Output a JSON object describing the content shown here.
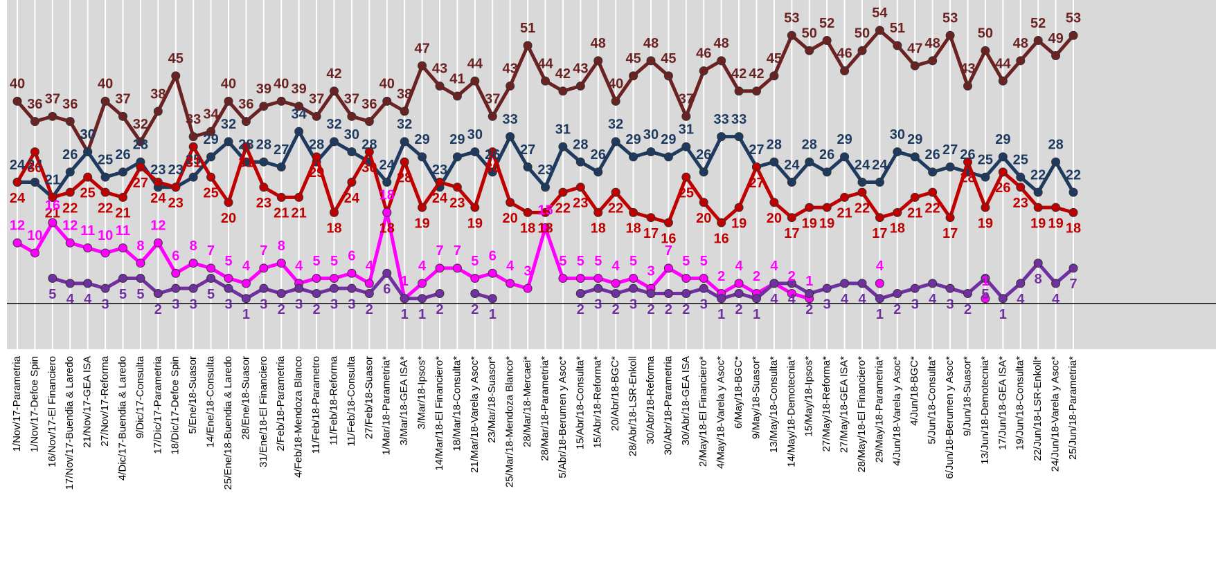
{
  "chart_data": {
    "type": "line",
    "categories": [
      "1/Nov/17-Parametria",
      "1/Nov/17-Defoe Spin",
      "16/Nov/17-El Financiero",
      "17/Nov/17-Buendia & Laredo",
      "21/Nov/17-GEA ISA",
      "27/Nov/17-Reforma",
      "4/Dic/17-Buendia & Laredo",
      "9/Dic/17-Consulta",
      "17/Dic/17-Parametria",
      "18/Dic/17-Defoe Spin",
      "5/Ene/18-Suasor",
      "14/Ene/18-Consulta",
      "25/Ene/18-Buendia & Laredo",
      "28/Ene/18-Suasor",
      "31/Ene/18-El Financiero",
      "2/Feb/18-Parametria",
      "4/Feb/18-Mendoza Blanco",
      "11/Feb/18-Parametro",
      "11/Feb/18-Reforma",
      "11/Feb/18-Consulta",
      "27/Feb/18-Suasor",
      "1/Mar/18-Parametria*",
      "3/Mar/18-GEA ISA*",
      "3/Mar/18-Ipsos*",
      "14/Mar/18-El Financiero*",
      "18/Mar/18-Consulta*",
      "21/Mar/18-Varela y Asoc*",
      "23/Mar/18-Suasor*",
      "25/Mar/18-Mendoza Blanco*",
      "28/Mar/18-Mercaei*",
      "28/Mar/18-Parametria*",
      "5/Abr/18-Berumen y Asoc*",
      "15/Abr/18-Consulta*",
      "15/Abr/18-Reforma*",
      "20/Abr/18-BGC*",
      "28/Abr/18-LSR-Enkoll",
      "30/Abr/18-Reforma",
      "30/Abr/18-Parametria",
      "30/Abr/18-GEA ISA",
      "2/May/18-El Financiero*",
      "4/May/18-Varela y Asoc*",
      "6/May/18-BGC*",
      "9/May/18-Suasor*",
      "13/May/18-Consulta*",
      "14/May/18-Demotecnia*",
      "15/May/18-Ipsos*",
      "27/May/18-Reforma*",
      "27/May/18-GEA ISA*",
      "28/May/18-El Financiero*",
      "29/May/18-Parametria*",
      "4/Jun/18-Varela y Asoc*",
      "4/Jun/18-BGC*",
      "5/Jun/18-Consulta*",
      "6/Jun/18-Berumen y Asoc*",
      "9/Jun/18-Suasor*",
      "13/Jun/18-Demotecnia*",
      "17/Jun/18-GEA ISA*",
      "19/Jun/18-Consulta*",
      "22/Jun/18-LSR-Enkoll*",
      "24/Jun/18-Varela y Asoc*",
      "25/Jun/18-Parametria*"
    ],
    "series": [
      {
        "color": "#6b2222",
        "label_side": "above",
        "values": [
          40,
          36,
          37,
          36,
          30,
          40,
          37,
          32,
          38,
          45,
          33,
          34,
          40,
          36,
          39,
          40,
          39,
          37,
          42,
          37,
          36,
          40,
          38,
          47,
          43,
          41,
          44,
          37,
          43,
          51,
          44,
          42,
          43,
          48,
          40,
          45,
          48,
          45,
          37,
          46,
          48,
          42,
          42,
          45,
          53,
          50,
          52,
          46,
          50,
          54,
          51,
          47,
          48,
          53,
          43,
          50,
          44,
          48,
          52,
          49,
          53
        ]
      },
      {
        "color": "#1f3a5f",
        "label_side": "above",
        "values": [
          24,
          24,
          21,
          26,
          30,
          25,
          26,
          28,
          23,
          23,
          25,
          29,
          32,
          28,
          28,
          27,
          34,
          28,
          32,
          30,
          28,
          24,
          32,
          29,
          23,
          29,
          30,
          26,
          33,
          27,
          23,
          31,
          28,
          26,
          32,
          29,
          30,
          29,
          31,
          26,
          33,
          33,
          27,
          28,
          24,
          28,
          26,
          29,
          24,
          24,
          30,
          29,
          26,
          27,
          26,
          25,
          29,
          25,
          22,
          28,
          22
        ]
      },
      {
        "color": "#c00000",
        "label_side": "below",
        "values": [
          24,
          30,
          21,
          22,
          25,
          22,
          21,
          27,
          24,
          23,
          31,
          25,
          20,
          31,
          23,
          21,
          21,
          29,
          18,
          24,
          30,
          18,
          28,
          19,
          24,
          23,
          19,
          30,
          20,
          18,
          18,
          22,
          23,
          18,
          22,
          18,
          17,
          16,
          25,
          20,
          16,
          19,
          27,
          20,
          17,
          19,
          19,
          21,
          22,
          17,
          18,
          21,
          22,
          17,
          28,
          19,
          26,
          23,
          19,
          19,
          18
        ]
      },
      {
        "color": "#ff00ff",
        "label_side": "above",
        "values": [
          12,
          10,
          16,
          12,
          11,
          10,
          11,
          8,
          12,
          6,
          8,
          7,
          5,
          4,
          7,
          8,
          4,
          5,
          5,
          6,
          4,
          18,
          1,
          4,
          7,
          7,
          5,
          6,
          4,
          3,
          15,
          5,
          5,
          5,
          4,
          5,
          3,
          7,
          5,
          5,
          2,
          4,
          2,
          4,
          2,
          1,
          null,
          null,
          null,
          4,
          null,
          null,
          null,
          null,
          null,
          1,
          null,
          null,
          null,
          null,
          null
        ]
      },
      {
        "color": "#7030a0",
        "label_side": "below",
        "values": [
          null,
          null,
          5,
          4,
          4,
          3,
          5,
          5,
          2,
          3,
          3,
          5,
          3,
          1,
          3,
          2,
          3,
          2,
          3,
          3,
          2,
          6,
          1,
          1,
          2,
          null,
          2,
          1,
          null,
          null,
          null,
          null,
          2,
          3,
          2,
          3,
          2,
          2,
          2,
          3,
          1,
          2,
          1,
          4,
          4,
          2,
          3,
          4,
          4,
          1,
          2,
          3,
          4,
          3,
          2,
          5,
          1,
          4,
          8,
          4,
          7
        ]
      }
    ],
    "ylim": [
      -9,
      60
    ],
    "grid": true
  }
}
